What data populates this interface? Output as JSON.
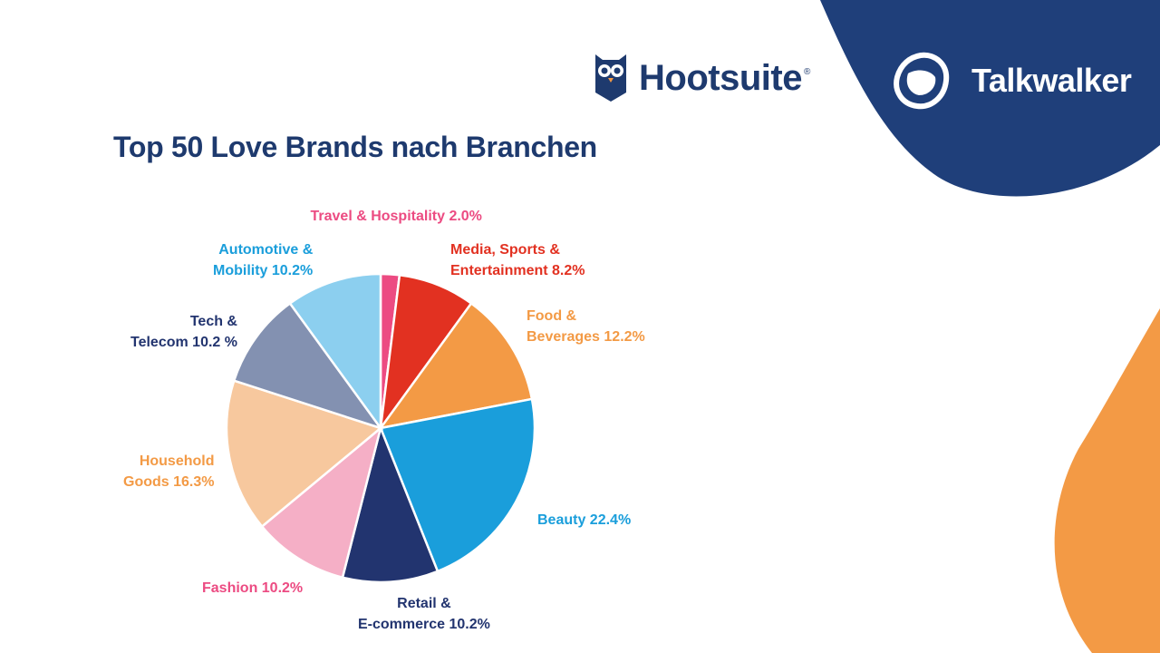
{
  "brands": {
    "hootsuite": {
      "name": "Hootsuite",
      "reg": "®",
      "color": "#1e3a6e"
    },
    "talkwalker": {
      "name": "Talkwalker",
      "color": "#ffffff",
      "panel_color": "#1f3f7a"
    }
  },
  "accent_orange": "#f39a45",
  "chart_data": {
    "type": "pie",
    "title": "Top 50 Love Brands nach Branchen",
    "start": "top, clockwise",
    "slices": [
      {
        "label": [
          "Travel & Hospitality 2.0%"
        ],
        "value": 2.0,
        "color": "#ec4b82",
        "label_color": "#ec4b82"
      },
      {
        "label": [
          "Media, Sports &",
          "Entertainment 8.2%"
        ],
        "value": 8.2,
        "color": "#e23121",
        "label_color": "#e23121"
      },
      {
        "label": [
          "Food &",
          "Beverages 12.2%"
        ],
        "value": 12.2,
        "color": "#f39a45",
        "label_color": "#f39a45"
      },
      {
        "label": [
          "Beauty 22.4%"
        ],
        "value": 22.4,
        "color": "#1a9edb",
        "label_color": "#1a9edb"
      },
      {
        "label": [
          "Retail &",
          "E-commerce 10.2%"
        ],
        "value": 10.2,
        "color": "#22346f",
        "label_color": "#22346f"
      },
      {
        "label": [
          "Fashion 10.2%"
        ],
        "value": 10.2,
        "color": "#f5afc6",
        "label_color": "#ec4b82"
      },
      {
        "label": [
          "Household",
          "Goods 16.3%"
        ],
        "value": 16.3,
        "color": "#f7c89e",
        "label_color": "#f39a45"
      },
      {
        "label": [
          "Tech &",
          "Telecom 10.2 %"
        ],
        "value": 10.2,
        "color": "#8391b1",
        "label_color": "#22346f"
      },
      {
        "label": [
          "Automotive &",
          "Mobility 10.2%"
        ],
        "value": 10.2,
        "color": "#8ccfef",
        "label_color": "#1a9edb"
      }
    ]
  }
}
